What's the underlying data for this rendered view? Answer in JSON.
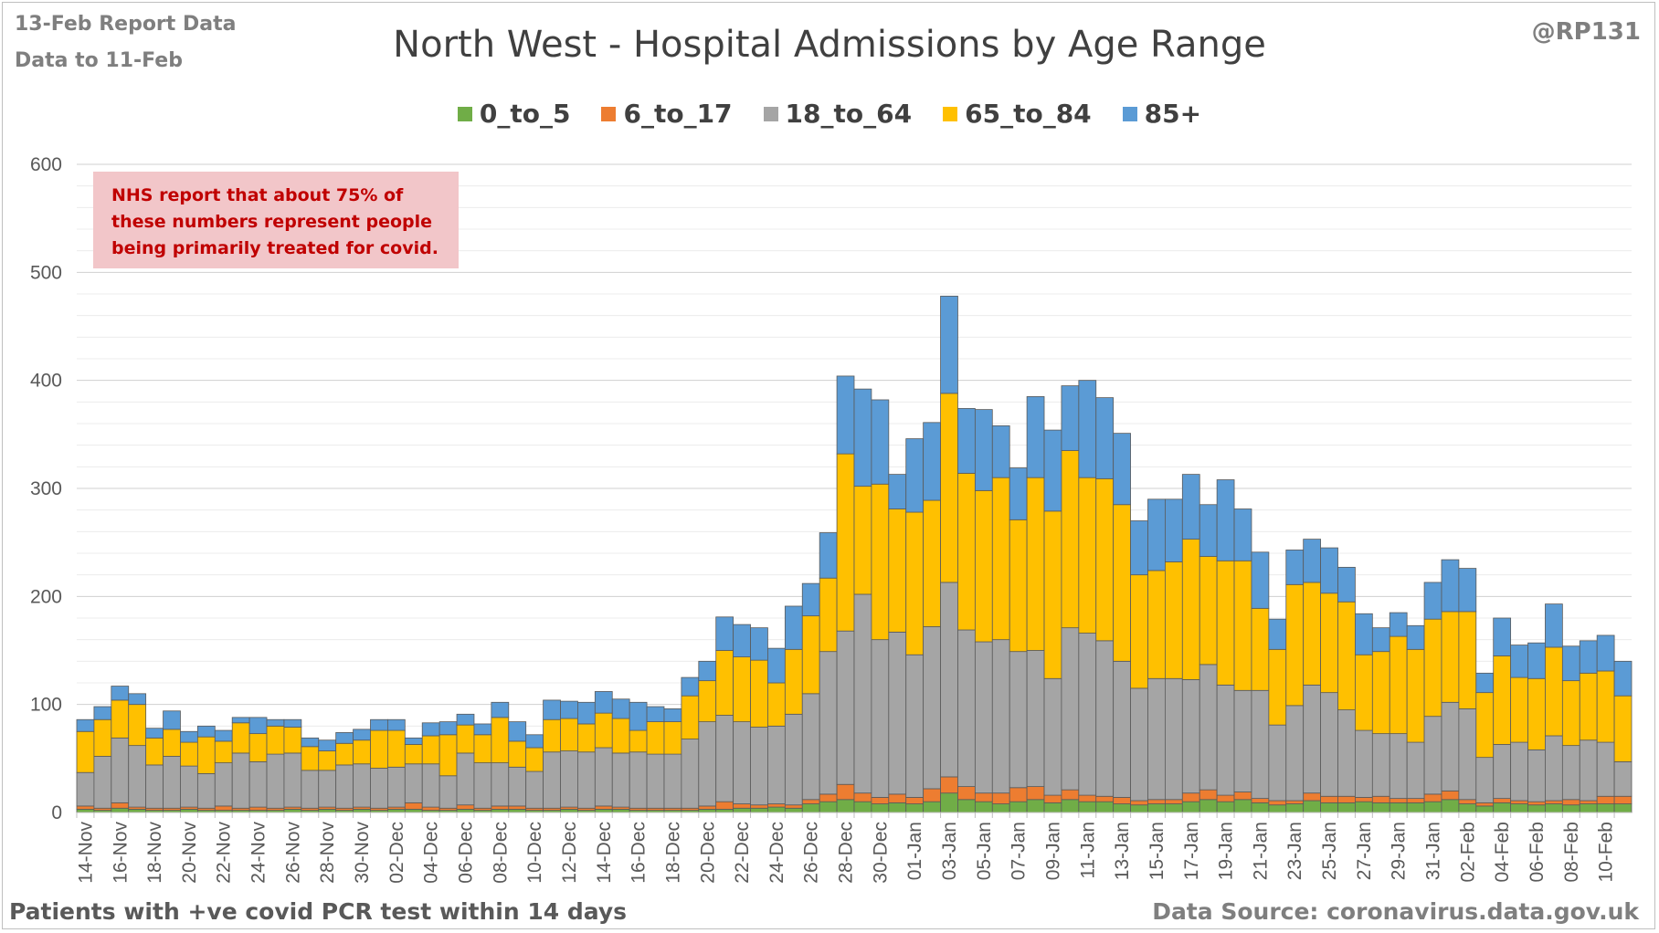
{
  "header": {
    "report_date": "13-Feb Report Data",
    "data_to": "Data to 11-Feb",
    "handle": "@RP131"
  },
  "note": "NHS report that about 75% of these numbers represent people being primarily treated for covid.",
  "footer": {
    "left": "Patients with  +ve covid PCR test within 14 days",
    "right": "Data Source: coronavirus.data.gov.uk"
  },
  "chart_data": {
    "type": "bar",
    "stacked": true,
    "title": "North West - Hospital Admissions by Age Range",
    "xlabel": "",
    "ylabel": "",
    "ylim": [
      0,
      600
    ],
    "yticks": [
      0,
      100,
      200,
      300,
      400,
      500,
      600
    ],
    "grid": true,
    "legend": "top",
    "categories": [
      "14-Nov",
      "15-Nov",
      "16-Nov",
      "17-Nov",
      "18-Nov",
      "19-Nov",
      "20-Nov",
      "21-Nov",
      "22-Nov",
      "23-Nov",
      "24-Nov",
      "25-Nov",
      "26-Nov",
      "27-Nov",
      "28-Nov",
      "29-Nov",
      "30-Nov",
      "01-Dec",
      "02-Dec",
      "03-Dec",
      "04-Dec",
      "05-Dec",
      "06-Dec",
      "07-Dec",
      "08-Dec",
      "09-Dec",
      "10-Dec",
      "11-Dec",
      "12-Dec",
      "13-Dec",
      "14-Dec",
      "15-Dec",
      "16-Dec",
      "17-Dec",
      "18-Dec",
      "19-Dec",
      "20-Dec",
      "21-Dec",
      "22-Dec",
      "23-Dec",
      "24-Dec",
      "25-Dec",
      "26-Dec",
      "27-Dec",
      "28-Dec",
      "29-Dec",
      "30-Dec",
      "31-Dec",
      "01-Jan",
      "02-Jan",
      "03-Jan",
      "04-Jan",
      "05-Jan",
      "06-Jan",
      "07-Jan",
      "08-Jan",
      "09-Jan",
      "10-Jan",
      "11-Jan",
      "12-Jan",
      "13-Jan",
      "14-Jan",
      "15-Jan",
      "16-Jan",
      "17-Jan",
      "18-Jan",
      "19-Jan",
      "20-Jan",
      "21-Jan",
      "22-Jan",
      "23-Jan",
      "24-Jan",
      "25-Jan",
      "26-Jan",
      "27-Jan",
      "28-Jan",
      "29-Jan",
      "30-Jan",
      "31-Jan",
      "01-Feb",
      "02-Feb",
      "03-Feb",
      "04-Feb",
      "05-Feb",
      "06-Feb",
      "07-Feb",
      "08-Feb",
      "09-Feb",
      "10-Feb",
      "11-Feb"
    ],
    "xtick_every": 2,
    "series": [
      {
        "name": "0_to_5",
        "color": "#70ad47",
        "values": [
          3,
          2,
          4,
          3,
          2,
          2,
          3,
          2,
          2,
          2,
          2,
          2,
          3,
          2,
          3,
          2,
          3,
          2,
          3,
          3,
          2,
          2,
          3,
          2,
          3,
          3,
          2,
          2,
          3,
          2,
          3,
          3,
          2,
          2,
          2,
          2,
          3,
          3,
          4,
          4,
          5,
          4,
          8,
          10,
          12,
          10,
          8,
          9,
          8,
          10,
          18,
          12,
          10,
          8,
          10,
          12,
          9,
          12,
          10,
          10,
          8,
          7,
          8,
          8,
          10,
          12,
          10,
          12,
          9,
          7,
          8,
          11,
          9,
          9,
          10,
          9,
          9,
          9,
          10,
          12,
          8,
          6,
          9,
          8,
          7,
          8,
          7,
          8,
          8,
          8
        ]
      },
      {
        "name": "6_to_17",
        "color": "#ed7d31",
        "values": [
          3,
          2,
          5,
          2,
          2,
          2,
          2,
          2,
          4,
          2,
          3,
          2,
          2,
          2,
          2,
          2,
          2,
          2,
          2,
          6,
          3,
          2,
          4,
          2,
          3,
          3,
          2,
          2,
          2,
          2,
          3,
          2,
          2,
          2,
          2,
          2,
          3,
          7,
          4,
          3,
          3,
          3,
          4,
          7,
          14,
          8,
          6,
          8,
          6,
          12,
          15,
          12,
          8,
          10,
          13,
          12,
          7,
          9,
          6,
          5,
          6,
          4,
          4,
          4,
          8,
          9,
          6,
          7,
          4,
          4,
          3,
          7,
          6,
          6,
          4,
          6,
          4,
          4,
          7,
          8,
          4,
          3,
          4,
          3,
          3,
          3,
          5,
          3,
          7,
          7
        ]
      },
      {
        "name": "18_to_64",
        "color": "#a5a5a5",
        "values": [
          31,
          48,
          60,
          57,
          40,
          48,
          38,
          32,
          40,
          51,
          42,
          50,
          50,
          35,
          34,
          40,
          40,
          37,
          37,
          36,
          40,
          30,
          48,
          42,
          40,
          36,
          34,
          52,
          52,
          52,
          54,
          50,
          52,
          50,
          50,
          64,
          78,
          80,
          76,
          72,
          72,
          84,
          98,
          132,
          142,
          184,
          146,
          150,
          132,
          150,
          180,
          145,
          140,
          142,
          126,
          126,
          108,
          150,
          150,
          144,
          126,
          104,
          112,
          112,
          105,
          116,
          102,
          94,
          100,
          70,
          88,
          100,
          96,
          80,
          62,
          58,
          60,
          52,
          72,
          82,
          84,
          42,
          50,
          54,
          48,
          60,
          50,
          56,
          50,
          32
        ]
      },
      {
        "name": "65_to_84",
        "color": "#ffc000",
        "values": [
          38,
          34,
          35,
          38,
          25,
          25,
          22,
          34,
          20,
          28,
          26,
          26,
          24,
          22,
          18,
          20,
          22,
          35,
          34,
          18,
          26,
          38,
          26,
          26,
          42,
          24,
          22,
          30,
          30,
          26,
          32,
          32,
          20,
          30,
          30,
          40,
          38,
          60,
          60,
          62,
          40,
          60,
          72,
          68,
          164,
          100,
          144,
          114,
          132,
          117,
          175,
          145,
          140,
          150,
          122,
          160,
          155,
          164,
          144,
          150,
          145,
          105,
          100,
          108,
          130,
          100,
          115,
          120,
          76,
          70,
          112,
          95,
          92,
          100,
          70,
          76,
          90,
          86,
          90,
          84,
          90,
          60,
          82,
          60,
          66,
          82,
          60,
          62,
          66,
          61
        ]
      },
      {
        "name": "85+",
        "color": "#5b9bd5",
        "values": [
          11,
          12,
          13,
          10,
          9,
          17,
          10,
          10,
          10,
          5,
          15,
          6,
          7,
          8,
          10,
          10,
          10,
          10,
          10,
          6,
          12,
          12,
          10,
          10,
          14,
          18,
          12,
          18,
          16,
          20,
          20,
          18,
          26,
          14,
          12,
          17,
          18,
          31,
          30,
          30,
          32,
          40,
          30,
          42,
          72,
          90,
          78,
          32,
          68,
          72,
          90,
          60,
          75,
          48,
          48,
          75,
          75,
          60,
          90,
          75,
          66,
          50,
          66,
          58,
          60,
          48,
          75,
          48,
          52,
          28,
          32,
          40,
          42,
          32,
          38,
          22,
          22,
          22,
          34,
          48,
          40,
          18,
          35,
          30,
          33,
          40,
          32,
          30,
          33,
          32
        ]
      }
    ]
  }
}
